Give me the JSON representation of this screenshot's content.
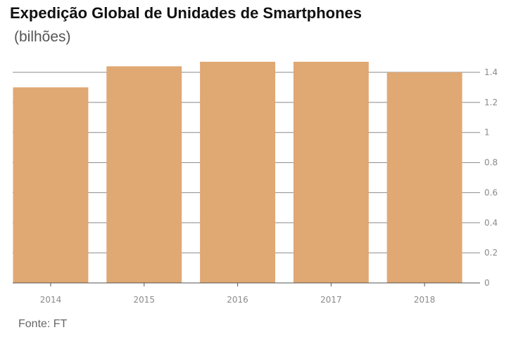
{
  "chart_data": {
    "type": "bar",
    "title": "Expedição Global de Unidades de Smartphones",
    "subtitle": "(bilhões)",
    "source": "Fonte: FT",
    "categories": [
      "2014",
      "2015",
      "2016",
      "2017",
      "2018"
    ],
    "values": [
      1.3,
      1.44,
      1.47,
      1.47,
      1.4
    ],
    "ylim": [
      0,
      1.4
    ],
    "yticks": [
      "0",
      "0.2",
      "0.4",
      "0.6",
      "0.8",
      "1",
      "1.2",
      "1.4"
    ],
    "y_axis_side": "right",
    "grid": true,
    "xlabel": "",
    "ylabel": "",
    "colors": {
      "bar": "#e0a873",
      "grid": "#888888",
      "axis": "#555555"
    }
  }
}
